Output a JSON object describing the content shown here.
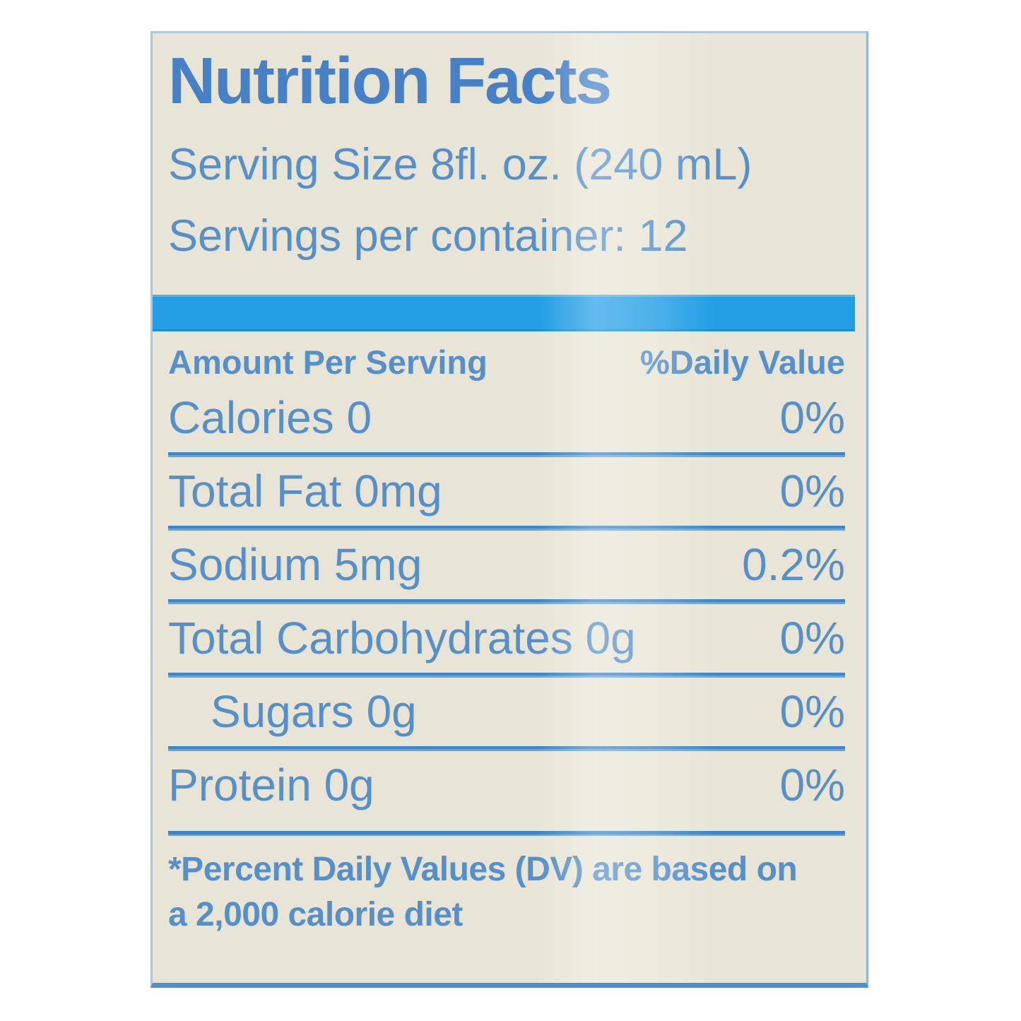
{
  "label": {
    "title": "Nutrition Facts",
    "serving_size": "Serving Size 8fl. oz. (240 mL)",
    "servings_per_container": "Servings per container: 12",
    "header": {
      "amount": "Amount Per Serving",
      "daily_value": "%Daily Value"
    },
    "rows": [
      {
        "name": "Calories 0",
        "value": "0%"
      },
      {
        "name": "Total Fat 0mg",
        "value": "0%"
      },
      {
        "name": "Sodium 5mg",
        "value": "0.2%"
      },
      {
        "name": "Total Carbohydrates 0g",
        "value": "0%"
      },
      {
        "name": "Sugars 0g",
        "value": "0%",
        "indent": true
      },
      {
        "name": "Protein 0g",
        "value": "0%"
      }
    ],
    "footnote": {
      "line1": "*Percent Daily Values (DV) are based on",
      "line2": "a 2,000 calorie diet"
    },
    "colors": {
      "text_blue": "#5590cc",
      "title_blue": "#4681c8",
      "bar_blue": "#229ee5",
      "label_background": "#e9e5d6",
      "rule_blue": "#3e86c8"
    }
  }
}
